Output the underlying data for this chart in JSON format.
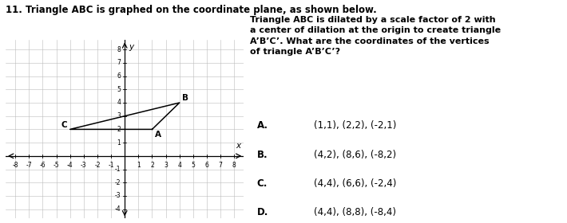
{
  "title_text": "11. Triangle ABC is graphed on the coordinate plane, as shown below.",
  "question_text": "Triangle ABC is dilated by a scale factor of 2 with\na center of dilation at the origin to create triangle\nA’B’C’. What are the coordinates of the vertices\nof triangle A’B’C’?",
  "choices": [
    {
      "letter": "A.",
      "text": "    (1,1), (2,2), (-2,1)"
    },
    {
      "letter": "B.",
      "text": "    (4,2), (8,6), (-8,2)"
    },
    {
      "letter": "C.",
      "text": "    (4,4), (6,6), (-2,4)"
    },
    {
      "letter": "D.",
      "text": "    (4,4), (8,8), (-8,4)"
    }
  ],
  "triangle_A": [
    2,
    2
  ],
  "triangle_B": [
    4,
    4
  ],
  "triangle_C": [
    -4,
    2
  ],
  "xlim": [
    -8.7,
    8.7
  ],
  "ylim": [
    -4.7,
    8.7
  ],
  "xticks": [
    -8,
    -7,
    -6,
    -5,
    -4,
    -3,
    -2,
    -1,
    1,
    2,
    3,
    4,
    5,
    6,
    7,
    8
  ],
  "yticks": [
    -4,
    -3,
    -2,
    -1,
    1,
    2,
    3,
    4,
    5,
    6,
    7,
    8
  ],
  "grid_color": "#bbbbbb",
  "triangle_color": "black",
  "bg_color": "white",
  "tick_fontsize": 5.5,
  "label_fontsize": 7.5,
  "title_fontsize": 8.5,
  "question_fontsize": 8.0,
  "choice_fontsize": 8.5,
  "axis_label_x": "x",
  "axis_label_y": "y"
}
